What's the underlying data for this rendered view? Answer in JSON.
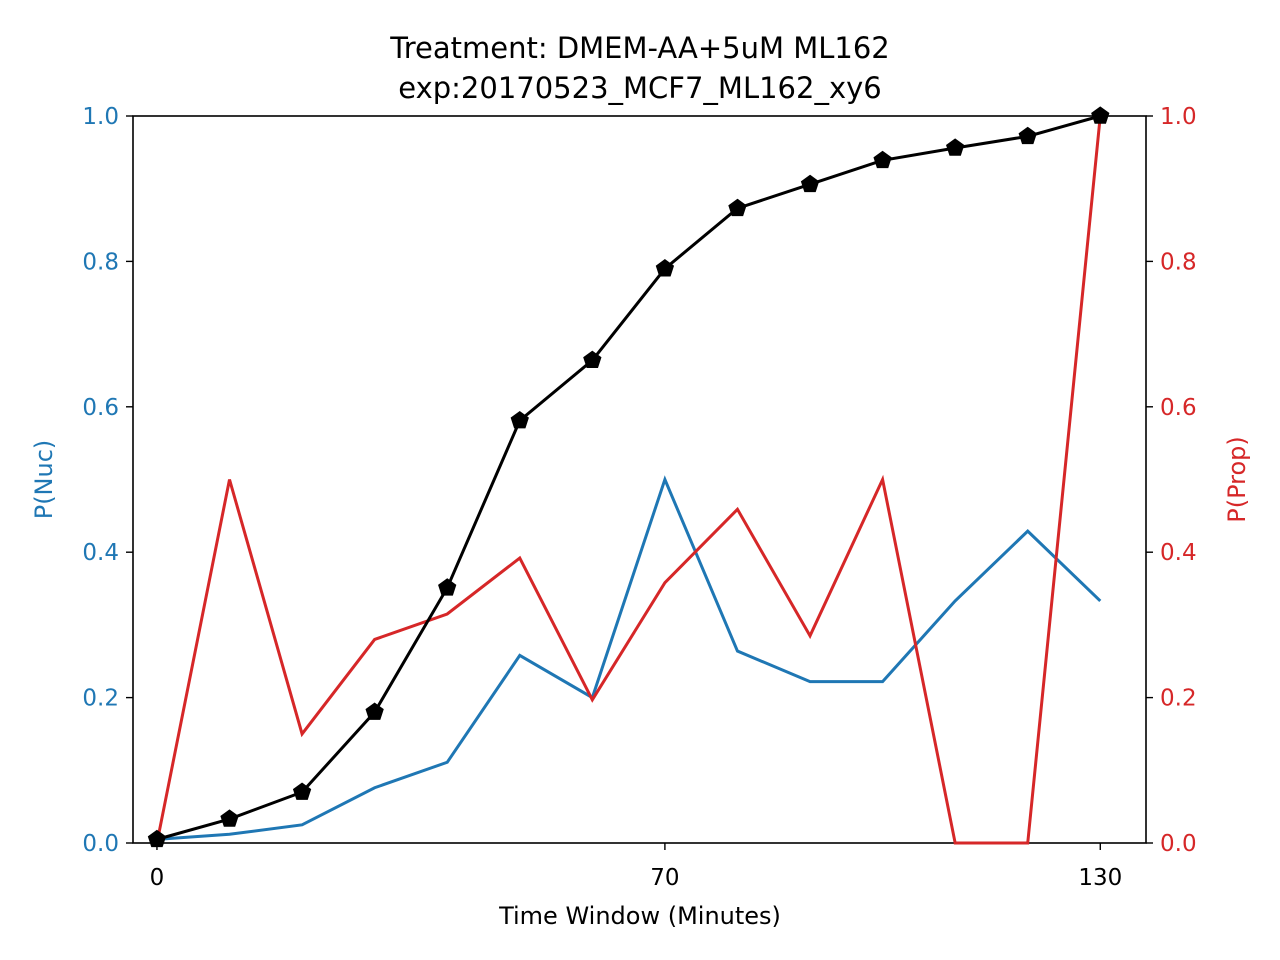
{
  "chart_data": {
    "type": "line",
    "title": "Treatment: DMEM-AA+5uM ML162",
    "subtitle": "exp:20170523_MCF7_ML162_xy6",
    "xlabel": "Time Window (Minutes)",
    "ylabel_left": "P(Nuc)",
    "ylabel_right": "P(Prop)",
    "xlim": [
      -3.3,
      136.3
    ],
    "ylim_left": [
      0,
      1
    ],
    "ylim_right": [
      0,
      1
    ],
    "x_ticks": [
      0,
      70,
      130
    ],
    "y_ticks_left": [
      "0.0",
      "0.2",
      "0.4",
      "0.6",
      "0.8",
      "1.0"
    ],
    "y_ticks_right": [
      "0.0",
      "0.2",
      "0.4",
      "0.6",
      "0.8",
      "1.0"
    ],
    "grid": false,
    "x": [
      0,
      10,
      20,
      30,
      40,
      50,
      60,
      70,
      80,
      90,
      100,
      110,
      120,
      130
    ],
    "series": [
      {
        "axis": "left",
        "color": "#1f77b4",
        "marker": "none",
        "values": [
          0.005,
          0.012,
          0.025,
          0.076,
          0.111,
          0.258,
          0.2,
          0.5,
          0.264,
          0.222,
          0.222,
          0.333,
          0.429,
          0.333
        ]
      },
      {
        "axis": "right",
        "color": "#d62728",
        "marker": "none",
        "values": [
          0.0,
          0.5,
          0.15,
          0.28,
          0.315,
          0.392,
          0.197,
          0.358,
          0.459,
          0.285,
          0.5,
          0.0,
          0.0,
          1.0
        ]
      },
      {
        "axis": "left",
        "color": "#000000",
        "marker": "pentagon",
        "values": [
          0.005,
          0.033,
          0.07,
          0.18,
          0.351,
          0.581,
          0.664,
          0.79,
          0.873,
          0.906,
          0.939,
          0.956,
          0.972,
          1.0
        ]
      }
    ],
    "colors": {
      "left_axis": "#1f77b4",
      "right_axis": "#d62728",
      "frame": "#000000"
    }
  }
}
